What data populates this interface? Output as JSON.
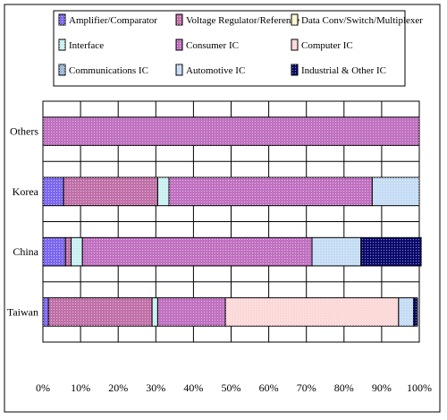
{
  "chart_data": {
    "type": "bar",
    "orientation": "horizontal",
    "stacked": true,
    "percent": true,
    "categories": [
      "Others",
      "Korea",
      "China",
      "Taiwan"
    ],
    "xlim": [
      0,
      100
    ],
    "x_ticks": [
      "0%",
      "10%",
      "20%",
      "30%",
      "40%",
      "50%",
      "60%",
      "70%",
      "80%",
      "90%",
      "100%"
    ],
    "grid": true,
    "legend_position": "top",
    "series": [
      {
        "name": "Amplifier/Comparator",
        "color": "#7b68ee",
        "values": [
          0,
          5.5,
          6,
          1.5
        ]
      },
      {
        "name": "Voltage Regulator/Reference",
        "color": "#c070a8",
        "values": [
          0,
          25,
          1.5,
          27.5
        ]
      },
      {
        "name": "Data Conv/Switch/Multiplexer",
        "color": "#fff8d0",
        "values": [
          0,
          0,
          0,
          0
        ]
      },
      {
        "name": "Interface",
        "color": "#c8f0f0",
        "values": [
          0,
          3,
          3,
          1.5
        ]
      },
      {
        "name": "Consumer IC",
        "color": "#c070c0",
        "values": [
          100,
          54,
          61,
          18
        ]
      },
      {
        "name": "Computer IC",
        "color": "#fcd8d8",
        "values": [
          0,
          0,
          0,
          46
        ]
      },
      {
        "name": "Communications IC",
        "color": "#9ab8d8",
        "values": [
          0,
          0,
          0,
          0
        ]
      },
      {
        "name": "Automotive IC",
        "color": "#c4dcf4",
        "values": [
          0,
          12.5,
          13,
          4
        ]
      },
      {
        "name": "Industrial & Other IC",
        "color": "#0a0a6e",
        "values": [
          0,
          0,
          16,
          1
        ]
      }
    ]
  }
}
